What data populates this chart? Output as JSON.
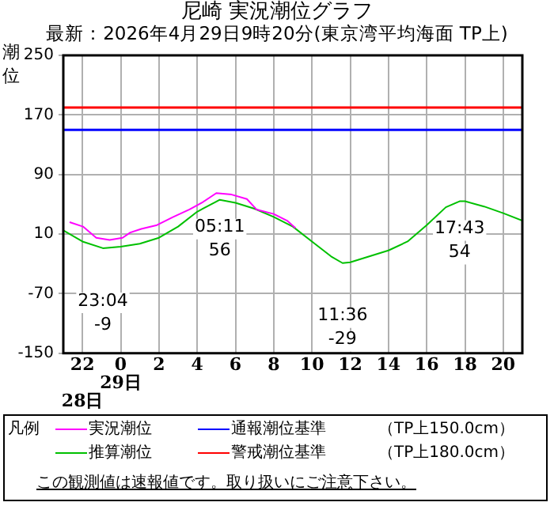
{
  "chart_data": {
    "type": "line",
    "title": "尼崎 実況潮位グラフ",
    "subtitle": "最新：2026年4月29日9時20分(東京湾平均海面 TP上)",
    "ylabel": "潮位",
    "legend_title": "凡例",
    "legend": "bottom",
    "grid": true,
    "marker": "none",
    "line_style": "solid",
    "xlim": [
      -3,
      21
    ],
    "xticks": [
      {
        "value": -2,
        "label": "22\n\n28日"
      },
      {
        "value": 0,
        "label": "0\n29日"
      },
      2,
      4,
      6,
      8,
      10,
      12,
      14,
      16,
      18,
      20
    ],
    "ylim": [
      -150,
      250
    ],
    "yticks": [
      -150,
      -70,
      10,
      90,
      170,
      250
    ],
    "series": [
      {
        "name": "実況潮位",
        "color": "#ff00ff",
        "x": [
          -2.67,
          -1.97,
          -1.28,
          -0.58,
          0.1,
          0.5,
          1.08,
          1.9,
          2.75,
          3.6,
          4.3,
          5.0,
          5.8,
          6.6,
          7.1,
          8,
          8.7,
          9.14
        ],
        "values": [
          26,
          20,
          5,
          2,
          5,
          12,
          17,
          22,
          33,
          43,
          53,
          65,
          63,
          57,
          43,
          37,
          28,
          18
        ]
      },
      {
        "name": "推算潮位",
        "color": "#00c000",
        "x": [
          -3,
          -2,
          -0.93,
          0,
          1,
          2,
          3,
          4,
          5.18,
          6,
          7,
          8,
          9,
          10,
          11,
          11.6,
          12,
          13,
          14,
          15,
          16,
          17,
          17.72,
          18,
          19,
          20,
          21
        ],
        "values": [
          15,
          0,
          -9,
          -7,
          -3,
          5,
          20,
          40,
          56,
          52,
          44,
          33,
          20,
          0,
          -20,
          -29,
          -28,
          -20,
          -12,
          0,
          22,
          46,
          54,
          54,
          47,
          38,
          28
        ]
      }
    ],
    "ref_lines": [
      {
        "axis": "y",
        "value": 150,
        "label": "通報潮位基準",
        "color": "#0000ff"
      },
      {
        "axis": "y",
        "value": 180,
        "label": "警戒潮位基準",
        "color": "#ff0000"
      }
    ],
    "annotations": [
      "（TP上150.0cm）",
      "（TP上180.0cm）",
      "この観測値は速報値です。取り扱いにご注意下さい。",
      {
        "text": "23:04\n-9",
        "x": -0.93,
        "y": -9
      },
      {
        "text": "05:11\n56",
        "x": 5.18,
        "y": 56
      },
      {
        "text": "11:36\n-29",
        "x": 11.6,
        "y": -29
      },
      {
        "text": "17:43\n54",
        "x": 17.72,
        "y": 54
      }
    ]
  }
}
